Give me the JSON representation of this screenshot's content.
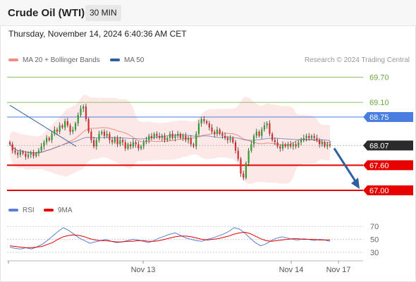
{
  "header": {
    "title": "Crude Oil (WTI)",
    "interval": "30 MIN"
  },
  "timestamp": "Thursday, November 14, 2024 6:40:36 AM CET",
  "legend": {
    "ma20": {
      "label": "MA 20 + Bollinger Bands",
      "color": "#f28b82"
    },
    "ma50": {
      "label": "MA 50",
      "color": "#2f5f9e"
    },
    "credit": "Research © 2024 Trading Central"
  },
  "rsi_legend": {
    "rsi": {
      "label": "RSI",
      "color": "#5b7fd6"
    },
    "ma9": {
      "label": "9MA",
      "color": "#e60000"
    }
  },
  "colors": {
    "up_candle": "#2e9e2e",
    "down_candle": "#d32f2f",
    "target_arrow": "#2f5f9e",
    "bollinger_fill": "#fde4e4",
    "level_green": "#8cc56a",
    "level_blue": "#4a7de0",
    "level_red": "#e60000",
    "last_price_tag": "#2b2b2b"
  },
  "chart_data": [
    {
      "type": "candlestick",
      "title": "Crude Oil (WTI)",
      "interval": "30 MIN",
      "ylim": [
        66.9,
        69.86
      ],
      "x_ticks": [
        "Nov 13",
        "Nov 14",
        "Nov 17"
      ],
      "levels": [
        {
          "value": 69.7,
          "label": "69.70",
          "kind": "resistance",
          "color": "#8cc56a"
        },
        {
          "value": 69.1,
          "label": "69.10",
          "kind": "resistance",
          "color": "#8cc56a"
        },
        {
          "value": 68.75,
          "label": "68.75",
          "kind": "pivot",
          "color": "#4a7de0"
        },
        {
          "value": 68.07,
          "label": "68.07",
          "kind": "last",
          "color": "#2b2b2b"
        },
        {
          "value": 67.6,
          "label": "67.60",
          "kind": "support",
          "color": "#e60000"
        },
        {
          "value": 67.0,
          "label": "67.00",
          "kind": "support",
          "color": "#e60000"
        }
      ],
      "closes": [
        68.1,
        67.95,
        67.9,
        67.85,
        67.92,
        67.88,
        67.8,
        67.85,
        67.9,
        67.82,
        67.88,
        67.95,
        68.05,
        68.15,
        68.25,
        68.2,
        68.35,
        68.45,
        68.4,
        68.55,
        68.5,
        68.65,
        68.55,
        68.4,
        68.45,
        68.6,
        68.8,
        68.95,
        69.0,
        68.7,
        68.4,
        68.2,
        68.05,
        68.2,
        68.35,
        68.4,
        68.3,
        68.35,
        68.2,
        68.15,
        68.25,
        68.1,
        68.2,
        68.15,
        68.0,
        68.1,
        68.05,
        68.15,
        68.1,
        68.0,
        68.05,
        68.15,
        68.2,
        68.3,
        68.25,
        68.35,
        68.3,
        68.25,
        68.3,
        68.2,
        68.25,
        68.35,
        68.25,
        68.3,
        68.35,
        68.25,
        68.3,
        68.2,
        68.25,
        68.1,
        68.05,
        68.35,
        68.6,
        68.7,
        68.65,
        68.6,
        68.5,
        68.4,
        68.35,
        68.45,
        68.35,
        68.3,
        68.25,
        68.2,
        68.25,
        68.15,
        67.95,
        67.75,
        67.4,
        67.3,
        67.65,
        67.95,
        68.1,
        68.3,
        68.4,
        68.3,
        68.45,
        68.55,
        68.6,
        68.35,
        68.2,
        68.15,
        68.05,
        68.0,
        68.1,
        68.05,
        68.1,
        68.05,
        68.1,
        68.05,
        68.15,
        68.2,
        68.25,
        68.3,
        68.25,
        68.3,
        68.25,
        68.2,
        68.1,
        68.15,
        68.05,
        68.1,
        68.07
      ],
      "target": {
        "from": 68.07,
        "to": 67.0,
        "direction": "down"
      }
    },
    {
      "type": "line",
      "title": "RSI",
      "ylim": [
        20,
        80
      ],
      "y_ticks": [
        70,
        50,
        30
      ],
      "series": [
        {
          "name": "RSI",
          "color": "#5b7fd6",
          "values": [
            38,
            36,
            35,
            37,
            35,
            38,
            42,
            48,
            55,
            62,
            68,
            64,
            58,
            52,
            48,
            44,
            46,
            48,
            50,
            47,
            45,
            46,
            48,
            50,
            49,
            47,
            45,
            48,
            52,
            55,
            58,
            60,
            56,
            52,
            50,
            48,
            47,
            50,
            52,
            55,
            58,
            62,
            68,
            66,
            60,
            52,
            45,
            40,
            43,
            48,
            52,
            54,
            52,
            50,
            49,
            51,
            50,
            48,
            50,
            49,
            47
          ]
        },
        {
          "name": "9MA",
          "color": "#e60000",
          "values": [
            40,
            39,
            38,
            37,
            37,
            38,
            39,
            42,
            45,
            50,
            54,
            56,
            57,
            56,
            54,
            51,
            49,
            48,
            48,
            47,
            46,
            46,
            47,
            47,
            48,
            48,
            47,
            47,
            48,
            50,
            52,
            54,
            55,
            55,
            54,
            52,
            50,
            49,
            50,
            51,
            53,
            55,
            58,
            60,
            61,
            59,
            55,
            51,
            48,
            47,
            48,
            49,
            50,
            51,
            51,
            50,
            50,
            50,
            49,
            49,
            49
          ]
        }
      ]
    }
  ]
}
